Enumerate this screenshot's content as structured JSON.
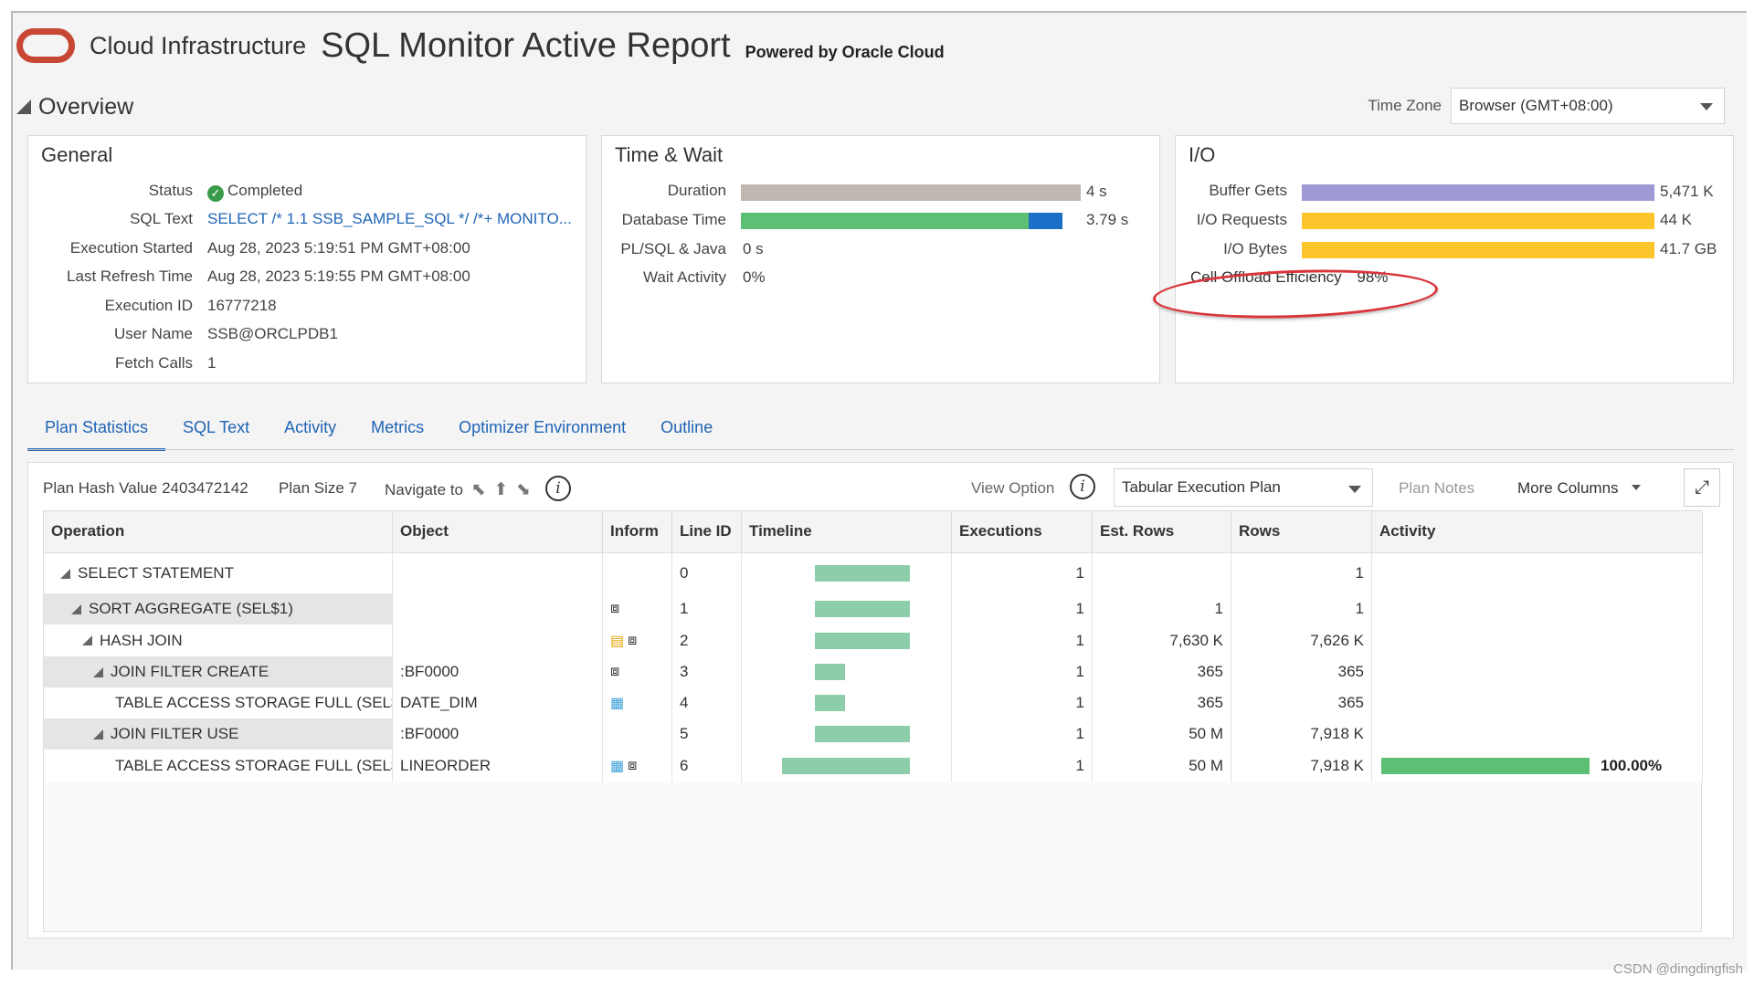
{
  "header": {
    "brand": "Cloud Infrastructure",
    "title": "SQL Monitor Active Report",
    "powered_by": "Powered by Oracle Cloud",
    "logo_color": "#c74634"
  },
  "overview": {
    "title": "Overview",
    "time_zone_label": "Time Zone",
    "time_zone_value": "Browser (GMT+08:00)"
  },
  "general": {
    "title": "General",
    "rows": [
      {
        "label": "Status",
        "value": "Completed"
      },
      {
        "label": "SQL Text",
        "value": "SELECT /* 1.1 SSB_SAMPLE_SQL */ /*+ MONITO..."
      },
      {
        "label": "Execution Started",
        "value": "Aug 28, 2023 5:19:51 PM GMT+08:00"
      },
      {
        "label": "Last Refresh Time",
        "value": "Aug 28, 2023 5:19:55 PM GMT+08:00"
      },
      {
        "label": "Execution ID",
        "value": "16777218"
      },
      {
        "label": "User Name",
        "value": "SSB@ORCLPDB1"
      },
      {
        "label": "Fetch Calls",
        "value": "1"
      }
    ]
  },
  "time_wait": {
    "title": "Time & Wait",
    "duration_label": "Duration",
    "duration_value": "4 s",
    "db_time_label": "Database Time",
    "db_time_value": "3.79 s",
    "plsql_label": "PL/SQL & Java",
    "plsql_value": "0 s",
    "wait_label": "Wait Activity",
    "wait_value": "0%",
    "colors": {
      "duration": "#c0b7b2",
      "db_cpu": "#5cbf73",
      "db_io": "#1a6fc7"
    }
  },
  "io": {
    "title": "I/O",
    "buffer_gets_label": "Buffer Gets",
    "buffer_gets_value": "5,471 K",
    "io_requests_label": "I/O Requests",
    "io_requests_value": "44 K",
    "io_bytes_label": "I/O Bytes",
    "io_bytes_value": "41.7 GB",
    "offload_label": "Cell Offload Efficiency",
    "offload_value": "98%",
    "colors": {
      "buffer": "#9d9ad6",
      "io": "#fbc52b",
      "highlight": "#d9343a"
    }
  },
  "tabs": [
    "Plan Statistics",
    "SQL Text",
    "Activity",
    "Metrics",
    "Optimizer Environment",
    "Outline"
  ],
  "toolbar": {
    "plan_hash": "Plan Hash Value 2403472142",
    "plan_size": "Plan Size 7",
    "navigate": "Navigate to",
    "view_option": "View Option",
    "view_select": "Tabular Execution Plan",
    "plan_notes": "Plan Notes",
    "more_columns": "More Columns"
  },
  "table": {
    "headers": [
      "Operation",
      "Object",
      "Inform",
      "Line ID",
      "Timeline",
      "Executions",
      "Est. Rows",
      "Rows",
      "Activity"
    ],
    "rows": [
      {
        "op": "SELECT STATEMENT",
        "obj": "",
        "line": "0",
        "exec": "1",
        "est": "",
        "rows": "1",
        "act": ""
      },
      {
        "op": "SORT AGGREGATE (SEL$1)",
        "obj": "",
        "line": "1",
        "exec": "1",
        "est": "1",
        "rows": "1",
        "act": ""
      },
      {
        "op": "HASH JOIN",
        "obj": "",
        "line": "2",
        "exec": "1",
        "est": "7,630 K",
        "rows": "7,626 K",
        "act": ""
      },
      {
        "op": "JOIN FILTER CREATE",
        "obj": ":BF0000",
        "line": "3",
        "exec": "1",
        "est": "365",
        "rows": "365",
        "act": ""
      },
      {
        "op": "TABLE ACCESS STORAGE FULL (SEL$",
        "obj": "DATE_DIM",
        "line": "4",
        "exec": "1",
        "est": "365",
        "rows": "365",
        "act": ""
      },
      {
        "op": "JOIN FILTER USE",
        "obj": ":BF0000",
        "line": "5",
        "exec": "1",
        "est": "50 M",
        "rows": "7,918 K",
        "act": ""
      },
      {
        "op": "TABLE ACCESS STORAGE FULL (SEL$",
        "obj": "LINEORDER",
        "line": "6",
        "exec": "1",
        "est": "50 M",
        "rows": "7,918 K",
        "act": "100.00%"
      }
    ]
  },
  "watermark": "CSDN @dingdingfish"
}
